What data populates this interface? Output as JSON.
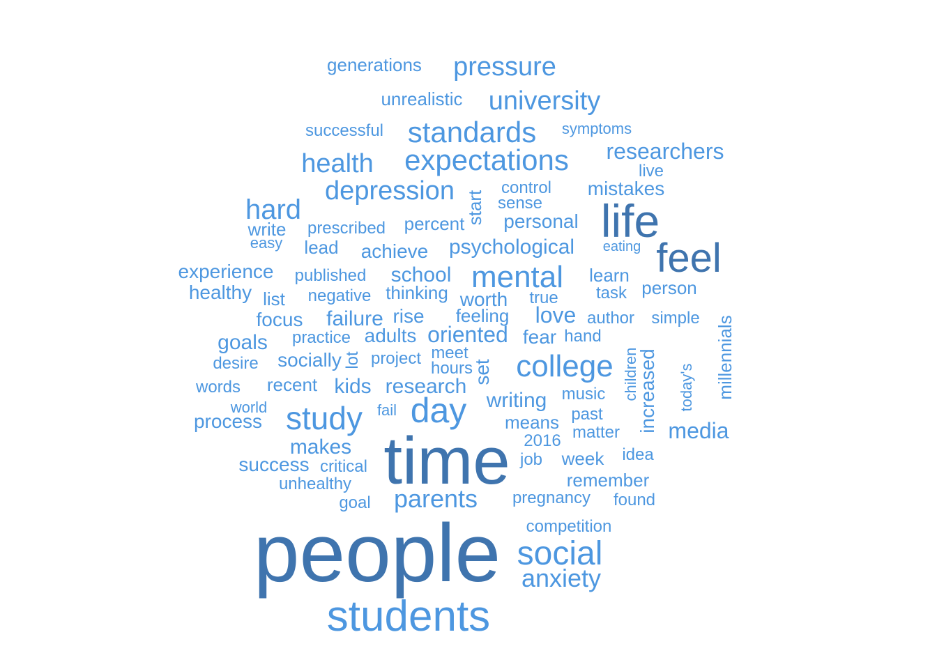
{
  "colors": {
    "primary": "#3f74ae",
    "secondary": "#4d97e0"
  },
  "words": [
    {
      "text": "people",
      "tier": "primary"
    },
    {
      "text": "time",
      "tier": "primary"
    },
    {
      "text": "students",
      "tier": "secondary"
    },
    {
      "text": "life",
      "tier": "primary"
    },
    {
      "text": "feel",
      "tier": "primary"
    },
    {
      "text": "social",
      "tier": "secondary"
    },
    {
      "text": "anxiety",
      "tier": "secondary"
    },
    {
      "text": "study",
      "tier": "secondary"
    },
    {
      "text": "day",
      "tier": "secondary"
    },
    {
      "text": "college",
      "tier": "secondary"
    },
    {
      "text": "mental",
      "tier": "secondary"
    },
    {
      "text": "expectations",
      "tier": "secondary"
    },
    {
      "text": "standards",
      "tier": "secondary"
    },
    {
      "text": "university",
      "tier": "secondary"
    },
    {
      "text": "pressure",
      "tier": "secondary"
    },
    {
      "text": "depression",
      "tier": "secondary"
    },
    {
      "text": "health",
      "tier": "secondary"
    },
    {
      "text": "hard",
      "tier": "secondary"
    },
    {
      "text": "parents",
      "tier": "secondary"
    },
    {
      "text": "researchers",
      "tier": "secondary"
    },
    {
      "text": "generations",
      "tier": "secondary"
    },
    {
      "text": "unrealistic",
      "tier": "secondary"
    },
    {
      "text": "successful",
      "tier": "secondary"
    },
    {
      "text": "symptoms",
      "tier": "secondary"
    },
    {
      "text": "live",
      "tier": "secondary"
    },
    {
      "text": "control",
      "tier": "secondary"
    },
    {
      "text": "mistakes",
      "tier": "secondary"
    },
    {
      "text": "start",
      "tier": "secondary"
    },
    {
      "text": "sense",
      "tier": "secondary"
    },
    {
      "text": "write",
      "tier": "secondary"
    },
    {
      "text": "prescribed",
      "tier": "secondary"
    },
    {
      "text": "percent",
      "tier": "secondary"
    },
    {
      "text": "personal",
      "tier": "secondary"
    },
    {
      "text": "easy",
      "tier": "secondary"
    },
    {
      "text": "lead",
      "tier": "secondary"
    },
    {
      "text": "achieve",
      "tier": "secondary"
    },
    {
      "text": "psychological",
      "tier": "secondary"
    },
    {
      "text": "eating",
      "tier": "secondary"
    },
    {
      "text": "experience",
      "tier": "secondary"
    },
    {
      "text": "published",
      "tier": "secondary"
    },
    {
      "text": "school",
      "tier": "secondary"
    },
    {
      "text": "learn",
      "tier": "secondary"
    },
    {
      "text": "healthy",
      "tier": "secondary"
    },
    {
      "text": "list",
      "tier": "secondary"
    },
    {
      "text": "negative",
      "tier": "secondary"
    },
    {
      "text": "thinking",
      "tier": "secondary"
    },
    {
      "text": "worth",
      "tier": "secondary"
    },
    {
      "text": "true",
      "tier": "secondary"
    },
    {
      "text": "task",
      "tier": "secondary"
    },
    {
      "text": "person",
      "tier": "secondary"
    },
    {
      "text": "focus",
      "tier": "secondary"
    },
    {
      "text": "failure",
      "tier": "secondary"
    },
    {
      "text": "rise",
      "tier": "secondary"
    },
    {
      "text": "feeling",
      "tier": "secondary"
    },
    {
      "text": "love",
      "tier": "secondary"
    },
    {
      "text": "author",
      "tier": "secondary"
    },
    {
      "text": "simple",
      "tier": "secondary"
    },
    {
      "text": "millennials",
      "tier": "secondary"
    },
    {
      "text": "goals",
      "tier": "secondary"
    },
    {
      "text": "practice",
      "tier": "secondary"
    },
    {
      "text": "adults",
      "tier": "secondary"
    },
    {
      "text": "oriented",
      "tier": "secondary"
    },
    {
      "text": "fear",
      "tier": "secondary"
    },
    {
      "text": "hand",
      "tier": "secondary"
    },
    {
      "text": "desire",
      "tier": "secondary"
    },
    {
      "text": "socially",
      "tier": "secondary"
    },
    {
      "text": "lot",
      "tier": "secondary"
    },
    {
      "text": "project",
      "tier": "secondary"
    },
    {
      "text": "meet",
      "tier": "secondary"
    },
    {
      "text": "hours",
      "tier": "secondary"
    },
    {
      "text": "set",
      "tier": "secondary"
    },
    {
      "text": "children",
      "tier": "secondary"
    },
    {
      "text": "increased",
      "tier": "secondary"
    },
    {
      "text": "today's",
      "tier": "secondary"
    },
    {
      "text": "words",
      "tier": "secondary"
    },
    {
      "text": "recent",
      "tier": "secondary"
    },
    {
      "text": "kids",
      "tier": "secondary"
    },
    {
      "text": "research",
      "tier": "secondary"
    },
    {
      "text": "writing",
      "tier": "secondary"
    },
    {
      "text": "music",
      "tier": "secondary"
    },
    {
      "text": "world",
      "tier": "secondary"
    },
    {
      "text": "fail",
      "tier": "secondary"
    },
    {
      "text": "past",
      "tier": "secondary"
    },
    {
      "text": "process",
      "tier": "secondary"
    },
    {
      "text": "means",
      "tier": "secondary"
    },
    {
      "text": "media",
      "tier": "secondary"
    },
    {
      "text": "matter",
      "tier": "secondary"
    },
    {
      "text": "2016",
      "tier": "secondary"
    },
    {
      "text": "makes",
      "tier": "secondary"
    },
    {
      "text": "idea",
      "tier": "secondary"
    },
    {
      "text": "job",
      "tier": "secondary"
    },
    {
      "text": "week",
      "tier": "secondary"
    },
    {
      "text": "success",
      "tier": "secondary"
    },
    {
      "text": "critical",
      "tier": "secondary"
    },
    {
      "text": "remember",
      "tier": "secondary"
    },
    {
      "text": "unhealthy",
      "tier": "secondary"
    },
    {
      "text": "goal",
      "tier": "secondary"
    },
    {
      "text": "pregnancy",
      "tier": "secondary"
    },
    {
      "text": "found",
      "tier": "secondary"
    },
    {
      "text": "competition",
      "tier": "secondary"
    }
  ]
}
